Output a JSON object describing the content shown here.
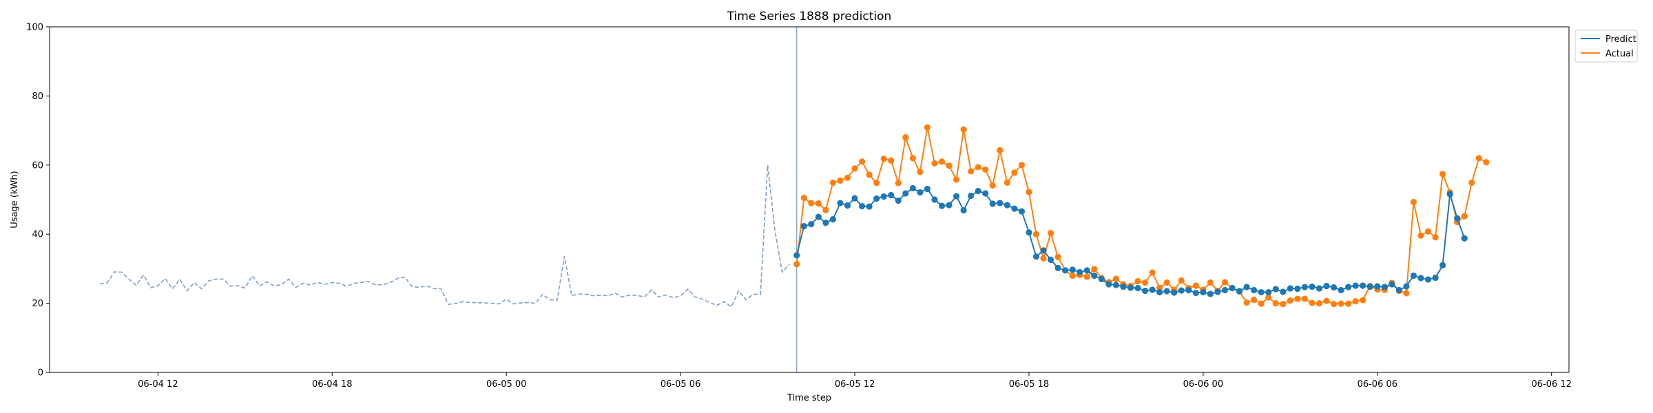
{
  "chart_data": {
    "type": "line",
    "title": "Time Series 1888 prediction",
    "xlabel": "Time step",
    "ylabel": "Usage (kWh)",
    "ylim": [
      0,
      100
    ],
    "y_ticks": [
      0,
      20,
      40,
      60,
      80,
      100
    ],
    "xlim": [
      "2024-06-04T08:16",
      "2024-06-06T12:36"
    ],
    "x_ticks": [
      {
        "label": "06-04 12",
        "t": "2024-06-04T12:00"
      },
      {
        "label": "06-04 18",
        "t": "2024-06-04T18:00"
      },
      {
        "label": "06-05 00",
        "t": "2024-06-05T00:00"
      },
      {
        "label": "06-05 06",
        "t": "2024-06-05T06:00"
      },
      {
        "label": "06-05 12",
        "t": "2024-06-05T12:00"
      },
      {
        "label": "06-05 18",
        "t": "2024-06-05T18:00"
      },
      {
        "label": "06-06 00",
        "t": "2024-06-06T00:00"
      },
      {
        "label": "06-06 06",
        "t": "2024-06-06T06:00"
      },
      {
        "label": "06-06 12",
        "t": "2024-06-06T12:00"
      }
    ],
    "grid": false,
    "legend_position": "top-right, outside plot",
    "forecast_start": "2024-06-05T10:00",
    "sample_interval_minutes": 15,
    "history": {
      "start": "2024-06-04T10:00",
      "color": "#7f9dc7",
      "values": [
        25.6,
        25.9,
        29.1,
        29.0,
        27.0,
        25.2,
        28.2,
        24.5,
        25.1,
        27.2,
        24.2,
        27.0,
        23.6,
        26.0,
        24.2,
        26.5,
        27.0,
        27.0,
        25.0,
        25.1,
        24.4,
        28.0,
        25.0,
        26.2,
        25.0,
        25.4,
        27.0,
        24.6,
        25.8,
        25.3,
        26.0,
        25.5,
        26.0,
        25.8,
        24.9,
        25.8,
        26.0,
        26.3,
        25.3,
        25.4,
        26.0,
        27.2,
        27.6,
        24.8,
        24.6,
        25.0,
        24.3,
        24.2,
        19.7,
        19.9,
        20.5,
        20.2,
        20.2,
        20.1,
        20.0,
        19.8,
        21.2,
        19.8,
        20.1,
        20.2,
        20.0,
        22.6,
        21.0,
        20.9,
        33.6,
        22.2,
        22.7,
        22.6,
        22.2,
        22.3,
        22.2,
        22.9,
        21.8,
        22.4,
        22.3,
        21.8,
        23.9,
        21.8,
        22.4,
        21.6,
        22.2,
        24.1,
        21.8,
        21.2,
        20.2,
        19.4,
        20.5,
        19.0,
        23.6,
        21.0,
        22.6,
        22.6,
        60.0,
        41.0,
        29.0,
        31.3
      ]
    },
    "series": [
      {
        "name": "Predict",
        "color": "#1f77b4",
        "start": "2024-06-05T10:00",
        "values": [
          33.9,
          42.3,
          42.9,
          45.0,
          43.3,
          44.3,
          49.0,
          48.3,
          50.4,
          48.1,
          48.0,
          50.3,
          50.9,
          51.3,
          49.7,
          51.8,
          53.3,
          52.1,
          53.1,
          50.0,
          48.2,
          48.4,
          51.0,
          46.9,
          51.1,
          52.5,
          51.8,
          48.8,
          49.0,
          48.4,
          47.4,
          46.6,
          40.5,
          33.5,
          35.3,
          32.6,
          30.2,
          29.5,
          29.7,
          29.0,
          29.5,
          28.0,
          27.0,
          25.5,
          25.3,
          24.8,
          24.5,
          24.4,
          23.6,
          23.9,
          23.2,
          23.5,
          23.1,
          23.7,
          23.8,
          23.0,
          23.2,
          22.7,
          23.3,
          23.8,
          24.4,
          23.5,
          24.7,
          23.8,
          23.2,
          23.2,
          24.1,
          23.3,
          24.3,
          24.2,
          24.7,
          24.8,
          24.3,
          25.0,
          24.6,
          23.8,
          24.7,
          25.1,
          25.1,
          24.8,
          24.9,
          24.7,
          25.5,
          23.8,
          24.9,
          28.0,
          27.3,
          26.9,
          27.4,
          31.0,
          51.6,
          44.6,
          38.8
        ]
      },
      {
        "name": "Actual",
        "color": "#ff7f0e",
        "start": "2024-06-05T10:00",
        "values": [
          31.3,
          50.5,
          49.0,
          48.9,
          47.0,
          54.9,
          55.5,
          56.3,
          59.0,
          61.0,
          57.2,
          54.8,
          61.8,
          61.3,
          54.8,
          68.0,
          62.0,
          58.0,
          70.9,
          60.5,
          61.0,
          59.8,
          55.8,
          70.3,
          58.2,
          59.4,
          58.7,
          54.1,
          64.3,
          54.9,
          57.8,
          60.0,
          52.2,
          40.0,
          33.0,
          40.3,
          33.4,
          29.5,
          28.0,
          28.2,
          27.7,
          29.9,
          27.3,
          26.1,
          27.1,
          25.5,
          25.0,
          26.4,
          26.0,
          28.9,
          24.5,
          26.0,
          23.9,
          26.6,
          24.4,
          25.1,
          23.9,
          26.0,
          23.6,
          26.1,
          24.4,
          23.4,
          20.2,
          21.0,
          19.9,
          21.7,
          20.0,
          19.8,
          20.8,
          21.3,
          21.3,
          20.1,
          20.0,
          20.7,
          19.8,
          19.9,
          19.9,
          20.6,
          20.9,
          25.0,
          24.0,
          23.9,
          25.9,
          23.6,
          22.9,
          49.3,
          39.6,
          40.8,
          39.1,
          57.4,
          52.1,
          43.5,
          45.2,
          54.9,
          62.0,
          60.8
        ]
      }
    ]
  }
}
